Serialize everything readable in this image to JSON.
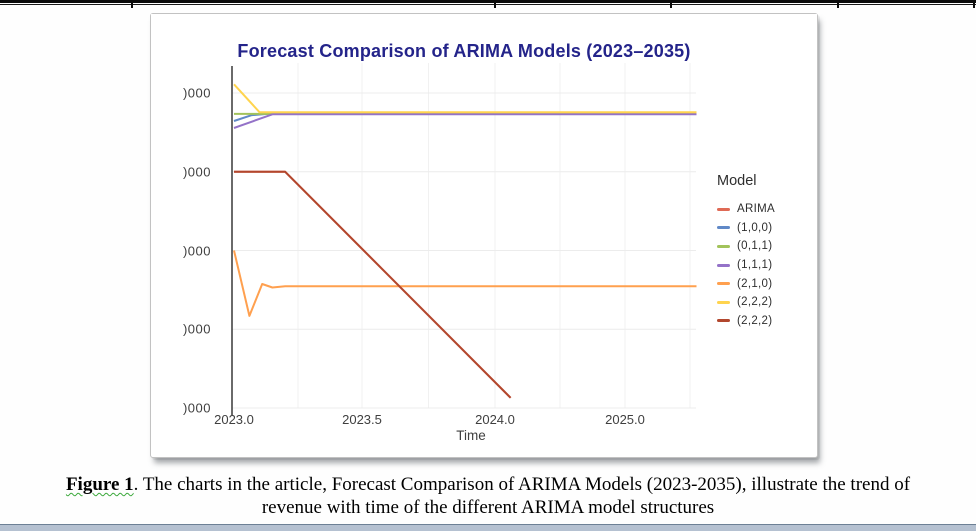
{
  "caption": {
    "label": "Figure 1",
    "line1": ". The charts in the article, Forecast Comparison of ARIMA Models (2023-2035), illustrate the trend of",
    "line2": "revenue with time of the different ARIMA model structures"
  },
  "chart_data": {
    "type": "line",
    "title": "Forecast Comparison of ARIMA Models (2023–2035)",
    "xlabel": "Time",
    "ylabel": "",
    "x_tick_labels": [
      "2023.0",
      "2023.5",
      "2024.0",
      "2025.0"
    ],
    "y_tick_labels": [
      ")000",
      ")000",
      ")000",
      ")000",
      ")000"
    ],
    "y_tick_values_estimated_top_to_bottom": [
      50000,
      40000,
      30000,
      20000,
      10000
    ],
    "xlim": [
      2023.0,
      2025.55
    ],
    "ylim": [
      10000,
      52000
    ],
    "grid": true,
    "legend_title": "Model",
    "legend_position": "right",
    "axis_color": "#2b2b2b",
    "gridline_color": "#ececec",
    "title_color": "#24248a",
    "series": [
      {
        "name": "ARIMA",
        "color": "#df6a55",
        "x": [
          2023.0,
          2023.2,
          2024.12
        ],
        "y": [
          40000,
          40000,
          11300
        ]
      },
      {
        "name": "(1,0,0)",
        "color": "#6089c7",
        "x": [
          2023.0,
          2023.07,
          2023.13,
          2025.55
        ],
        "y": [
          46450,
          47200,
          47350,
          47350
        ]
      },
      {
        "name": "(0,1,1)",
        "color": "#a2c35b",
        "x": [
          2023.0,
          2025.55
        ],
        "y": [
          47350,
          47350
        ]
      },
      {
        "name": "(1,1,1)",
        "color": "#9472c8",
        "x": [
          2023.0,
          2023.15,
          2025.55
        ],
        "y": [
          45550,
          47300,
          47300
        ]
      },
      {
        "name": "(2,1,0)",
        "color": "#ffa04f",
        "x": [
          2023.0,
          2023.06,
          2023.11,
          2023.15,
          2023.2,
          2025.55
        ],
        "y": [
          30000,
          21700,
          25750,
          25300,
          25450,
          25450
        ]
      },
      {
        "name": "(2,2,2)",
        "color": "#ffd44e",
        "x": [
          2023.0,
          2023.1,
          2025.55
        ],
        "y": [
          51100,
          47550,
          47550
        ]
      },
      {
        "name": "(2,2,2)",
        "color": "#b2472e",
        "x": [
          2023.0,
          2023.2,
          2024.12
        ],
        "y": [
          40000,
          40000,
          11300
        ]
      }
    ]
  }
}
